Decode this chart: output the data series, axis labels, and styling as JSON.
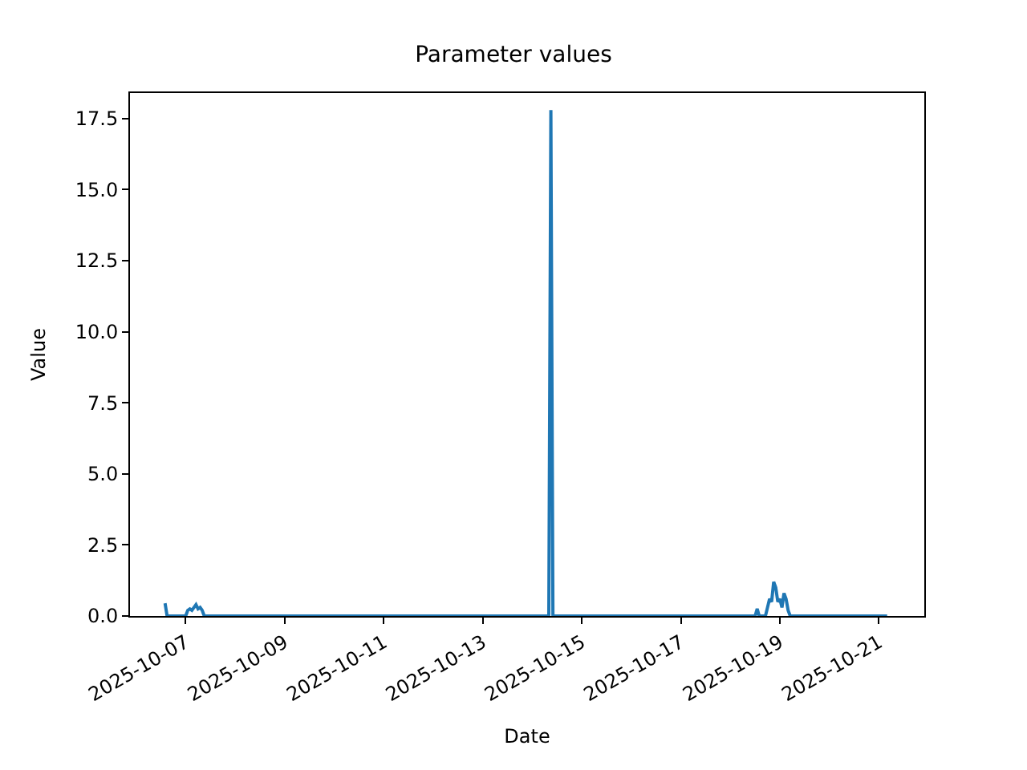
{
  "chart_data": {
    "type": "line",
    "title": "Parameter values",
    "xlabel": "Date",
    "ylabel": "Value",
    "x": [
      "2025-10-06T14:00",
      "2025-10-06T15:00",
      "2025-10-07T00:00",
      "2025-10-07T01:00",
      "2025-10-07T02:00",
      "2025-10-07T03:00",
      "2025-10-07T04:00",
      "2025-10-07T05:00",
      "2025-10-07T06:00",
      "2025-10-07T07:00",
      "2025-10-07T08:00",
      "2025-10-07T09:00",
      "2025-10-14T08:00",
      "2025-10-14T09:00",
      "2025-10-14T10:00",
      "2025-10-18T12:00",
      "2025-10-18T13:00",
      "2025-10-18T14:00",
      "2025-10-18T17:00",
      "2025-10-18T18:00",
      "2025-10-18T19:00",
      "2025-10-18T20:00",
      "2025-10-18T21:00",
      "2025-10-18T22:00",
      "2025-10-18T23:00",
      "2025-10-19T00:00",
      "2025-10-19T01:00",
      "2025-10-19T02:00",
      "2025-10-19T03:00",
      "2025-10-19T04:00",
      "2025-10-19T05:00",
      "2025-10-21T04:00"
    ],
    "series": [
      {
        "color": "#1f77b4",
        "values": [
          0.45,
          0.0,
          0.0,
          0.2,
          0.25,
          0.2,
          0.3,
          0.4,
          0.25,
          0.3,
          0.2,
          0.0,
          0.0,
          17.8,
          0.0,
          0.0,
          0.25,
          0.0,
          0.0,
          0.3,
          0.6,
          0.5,
          1.2,
          1.0,
          0.5,
          0.6,
          0.3,
          0.8,
          0.6,
          0.2,
          0.0,
          0.0
        ]
      }
    ],
    "xlim": [
      "2025-10-05T21:00",
      "2025-10-21T22:00"
    ],
    "xticks": [
      {
        "value": "2025-10-07",
        "label": "2025-10-07"
      },
      {
        "value": "2025-10-09",
        "label": "2025-10-09"
      },
      {
        "value": "2025-10-11",
        "label": "2025-10-11"
      },
      {
        "value": "2025-10-13",
        "label": "2025-10-13"
      },
      {
        "value": "2025-10-15",
        "label": "2025-10-15"
      },
      {
        "value": "2025-10-17",
        "label": "2025-10-17"
      },
      {
        "value": "2025-10-19",
        "label": "2025-10-19"
      },
      {
        "value": "2025-10-21",
        "label": "2025-10-21"
      }
    ],
    "ylim": [
      0,
      18.4
    ],
    "yticks": [
      {
        "value": 0,
        "label": "0.0"
      },
      2.5,
      {
        "value": 5,
        "label": "5.0"
      },
      7.5,
      {
        "value": 10,
        "label": "10.0"
      },
      12.5,
      {
        "value": 15,
        "label": "15.0"
      },
      17.5
    ],
    "marker": "none",
    "line_style": "solid"
  }
}
